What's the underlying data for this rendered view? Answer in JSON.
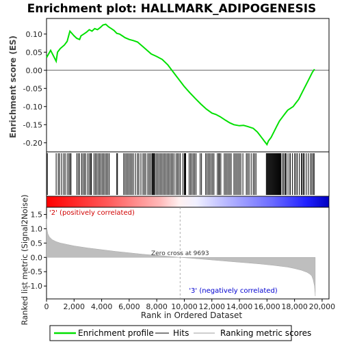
{
  "chart_data": [
    {
      "type": "line",
      "title": "Enrichment plot: HALLMARK_ADIPOGENESIS",
      "ylabel": "Enrichment score (ES)",
      "ylim": [
        -0.225,
        0.143
      ],
      "yticks": [
        0.1,
        0.05,
        0.0,
        -0.05,
        -0.1,
        -0.15,
        -0.2
      ],
      "ytick_labels": [
        "0.10",
        "0.05",
        "0.00",
        "-0.05",
        "-0.10",
        "-0.15",
        "-0.20"
      ],
      "grid": false,
      "series": [
        {
          "name": "Enrichment profile",
          "color": "#00e000",
          "x": [
            0,
            300,
            700,
            800,
            1000,
            1300,
            1500,
            1700,
            2000,
            2200,
            2400,
            2500,
            2700,
            2900,
            3100,
            3300,
            3500,
            3700,
            3900,
            4100,
            4300,
            4500,
            4700,
            4900,
            5100,
            5300,
            5500,
            5700,
            6000,
            6300,
            6600,
            7000,
            7300,
            7600,
            8000,
            8400,
            8800,
            9200,
            9600,
            10000,
            10400,
            10800,
            11200,
            11600,
            12000,
            12300,
            12600,
            13000,
            13300,
            13600,
            14000,
            14300,
            14600,
            15000,
            15300,
            15600,
            15800,
            16000,
            16100,
            16300,
            16500,
            16700,
            16900,
            17100,
            17300,
            17500,
            17700,
            17900,
            18100,
            18300,
            18500,
            18700,
            18900,
            19100,
            19300,
            19450
          ],
          "y": [
            0.035,
            0.055,
            0.025,
            0.05,
            0.06,
            0.07,
            0.08,
            0.108,
            0.095,
            0.088,
            0.085,
            0.095,
            0.1,
            0.105,
            0.112,
            0.108,
            0.115,
            0.112,
            0.118,
            0.125,
            0.127,
            0.12,
            0.115,
            0.11,
            0.102,
            0.1,
            0.095,
            0.09,
            0.085,
            0.082,
            0.078,
            0.065,
            0.055,
            0.045,
            0.038,
            0.03,
            0.015,
            -0.005,
            -0.025,
            -0.045,
            -0.062,
            -0.078,
            -0.093,
            -0.107,
            -0.118,
            -0.122,
            -0.128,
            -0.138,
            -0.145,
            -0.15,
            -0.153,
            -0.152,
            -0.155,
            -0.16,
            -0.17,
            -0.185,
            -0.195,
            -0.205,
            -0.195,
            -0.185,
            -0.17,
            -0.155,
            -0.14,
            -0.13,
            -0.12,
            -0.11,
            -0.105,
            -0.1,
            -0.09,
            -0.08,
            -0.065,
            -0.05,
            -0.035,
            -0.02,
            -0.005,
            0.003
          ]
        }
      ]
    },
    {
      "type": "hits",
      "series": [
        {
          "name": "Hits",
          "color": "#000000",
          "x": [
            60,
            700,
            850,
            950,
            1100,
            1250,
            1350,
            1500,
            1620,
            1700,
            1780,
            2200,
            2300,
            2400,
            2550,
            2650,
            2750,
            2850,
            3000,
            3100,
            3200,
            3250,
            3450,
            3550,
            3650,
            3750,
            3850,
            3950,
            4050,
            4150,
            4250,
            4350,
            4450,
            4550,
            5100,
            5150,
            5600,
            5700,
            5800,
            5900,
            6000,
            6100,
            6200,
            6300,
            6450,
            6600,
            6700,
            6850,
            7000,
            7100,
            7200,
            7350,
            7450,
            7550,
            7650,
            7700,
            7750,
            7800,
            7850,
            7950,
            8050,
            8150,
            8250,
            8350,
            8450,
            8550,
            8650,
            8750,
            8850,
            8950,
            9050,
            9150,
            9250,
            9400,
            9500,
            9600,
            9700,
            9900,
            10000,
            10050,
            10100,
            10350,
            10450,
            10550,
            10650,
            10750,
            10850,
            11150,
            11250,
            11550,
            11650,
            11750,
            11850,
            11950,
            12050,
            12150,
            12400,
            12500,
            12550,
            12650,
            12900,
            13000,
            13100,
            13200,
            13300,
            13400,
            13600,
            13700,
            13800,
            13900,
            14000,
            14100,
            14250,
            14500,
            14600,
            14700,
            14850,
            15000,
            15100,
            15200,
            15950,
            16000,
            16050,
            16100,
            16150,
            16200,
            16250,
            16300,
            16350,
            16400,
            16450,
            16500,
            16550,
            16600,
            16650,
            16700,
            16750,
            16800,
            16850,
            16900,
            16950,
            17000,
            17100,
            17200,
            17300,
            17350,
            17450,
            17600,
            17700,
            17850,
            18000,
            18100,
            18200,
            18350,
            18500,
            18550,
            18650,
            18700,
            18850,
            19000,
            19150,
            19250,
            19350,
            19420
          ]
        }
      ]
    },
    {
      "type": "area",
      "ylabel": "Ranked list metric (Signal2Noise)",
      "xlabel": "Rank in Ordered Dataset",
      "xlim": [
        0,
        20500
      ],
      "ylim": [
        -1.45,
        1.75
      ],
      "xticks": [
        0,
        2000,
        4000,
        6000,
        8000,
        10000,
        12000,
        14000,
        16000,
        18000,
        20000
      ],
      "xtick_labels": [
        "0",
        "2,000",
        "4,000",
        "6,000",
        "8,000",
        "10,000",
        "12,000",
        "14,000",
        "16,000",
        "18,000",
        "20,000"
      ],
      "yticks": [
        1.5,
        1.0,
        0.5,
        0.0,
        -0.5,
        -1.0
      ],
      "ytick_labels": [
        "1.5",
        "1.0",
        "0.5",
        "0.0",
        "-0.5",
        "-1.0"
      ],
      "annotations": {
        "zero_cross": "Zero cross at 9693",
        "zero_cross_x": 9693,
        "positive_label": "'2' (positively correlated)",
        "negative_label": "'3' (negatively correlated)"
      },
      "series": [
        {
          "name": "Ranking metric scores",
          "color": "#bebebe",
          "x": [
            0,
            30,
            100,
            200,
            400,
            700,
            1000,
            1500,
            2000,
            3000,
            4000,
            5000,
            6000,
            7000,
            8000,
            9000,
            9693,
            10500,
            11500,
            12500,
            13500,
            14500,
            15500,
            16500,
            17500,
            18000,
            18500,
            18900,
            19100,
            19250,
            19350,
            19450,
            19500
          ],
          "y": [
            1.35,
            1.0,
            0.82,
            0.72,
            0.62,
            0.55,
            0.5,
            0.45,
            0.4,
            0.33,
            0.27,
            0.21,
            0.16,
            0.11,
            0.07,
            0.03,
            0.0,
            -0.03,
            -0.07,
            -0.11,
            -0.15,
            -0.19,
            -0.23,
            -0.28,
            -0.34,
            -0.39,
            -0.45,
            -0.52,
            -0.58,
            -0.65,
            -0.78,
            -1.0,
            -1.35
          ]
        }
      ]
    }
  ],
  "legend": {
    "items": [
      {
        "label": "Enrichment profile",
        "color": "#00e000"
      },
      {
        "label": "Hits",
        "color": "#000000"
      },
      {
        "label": "Ranking metric scores",
        "color": "#bebebe"
      }
    ]
  }
}
